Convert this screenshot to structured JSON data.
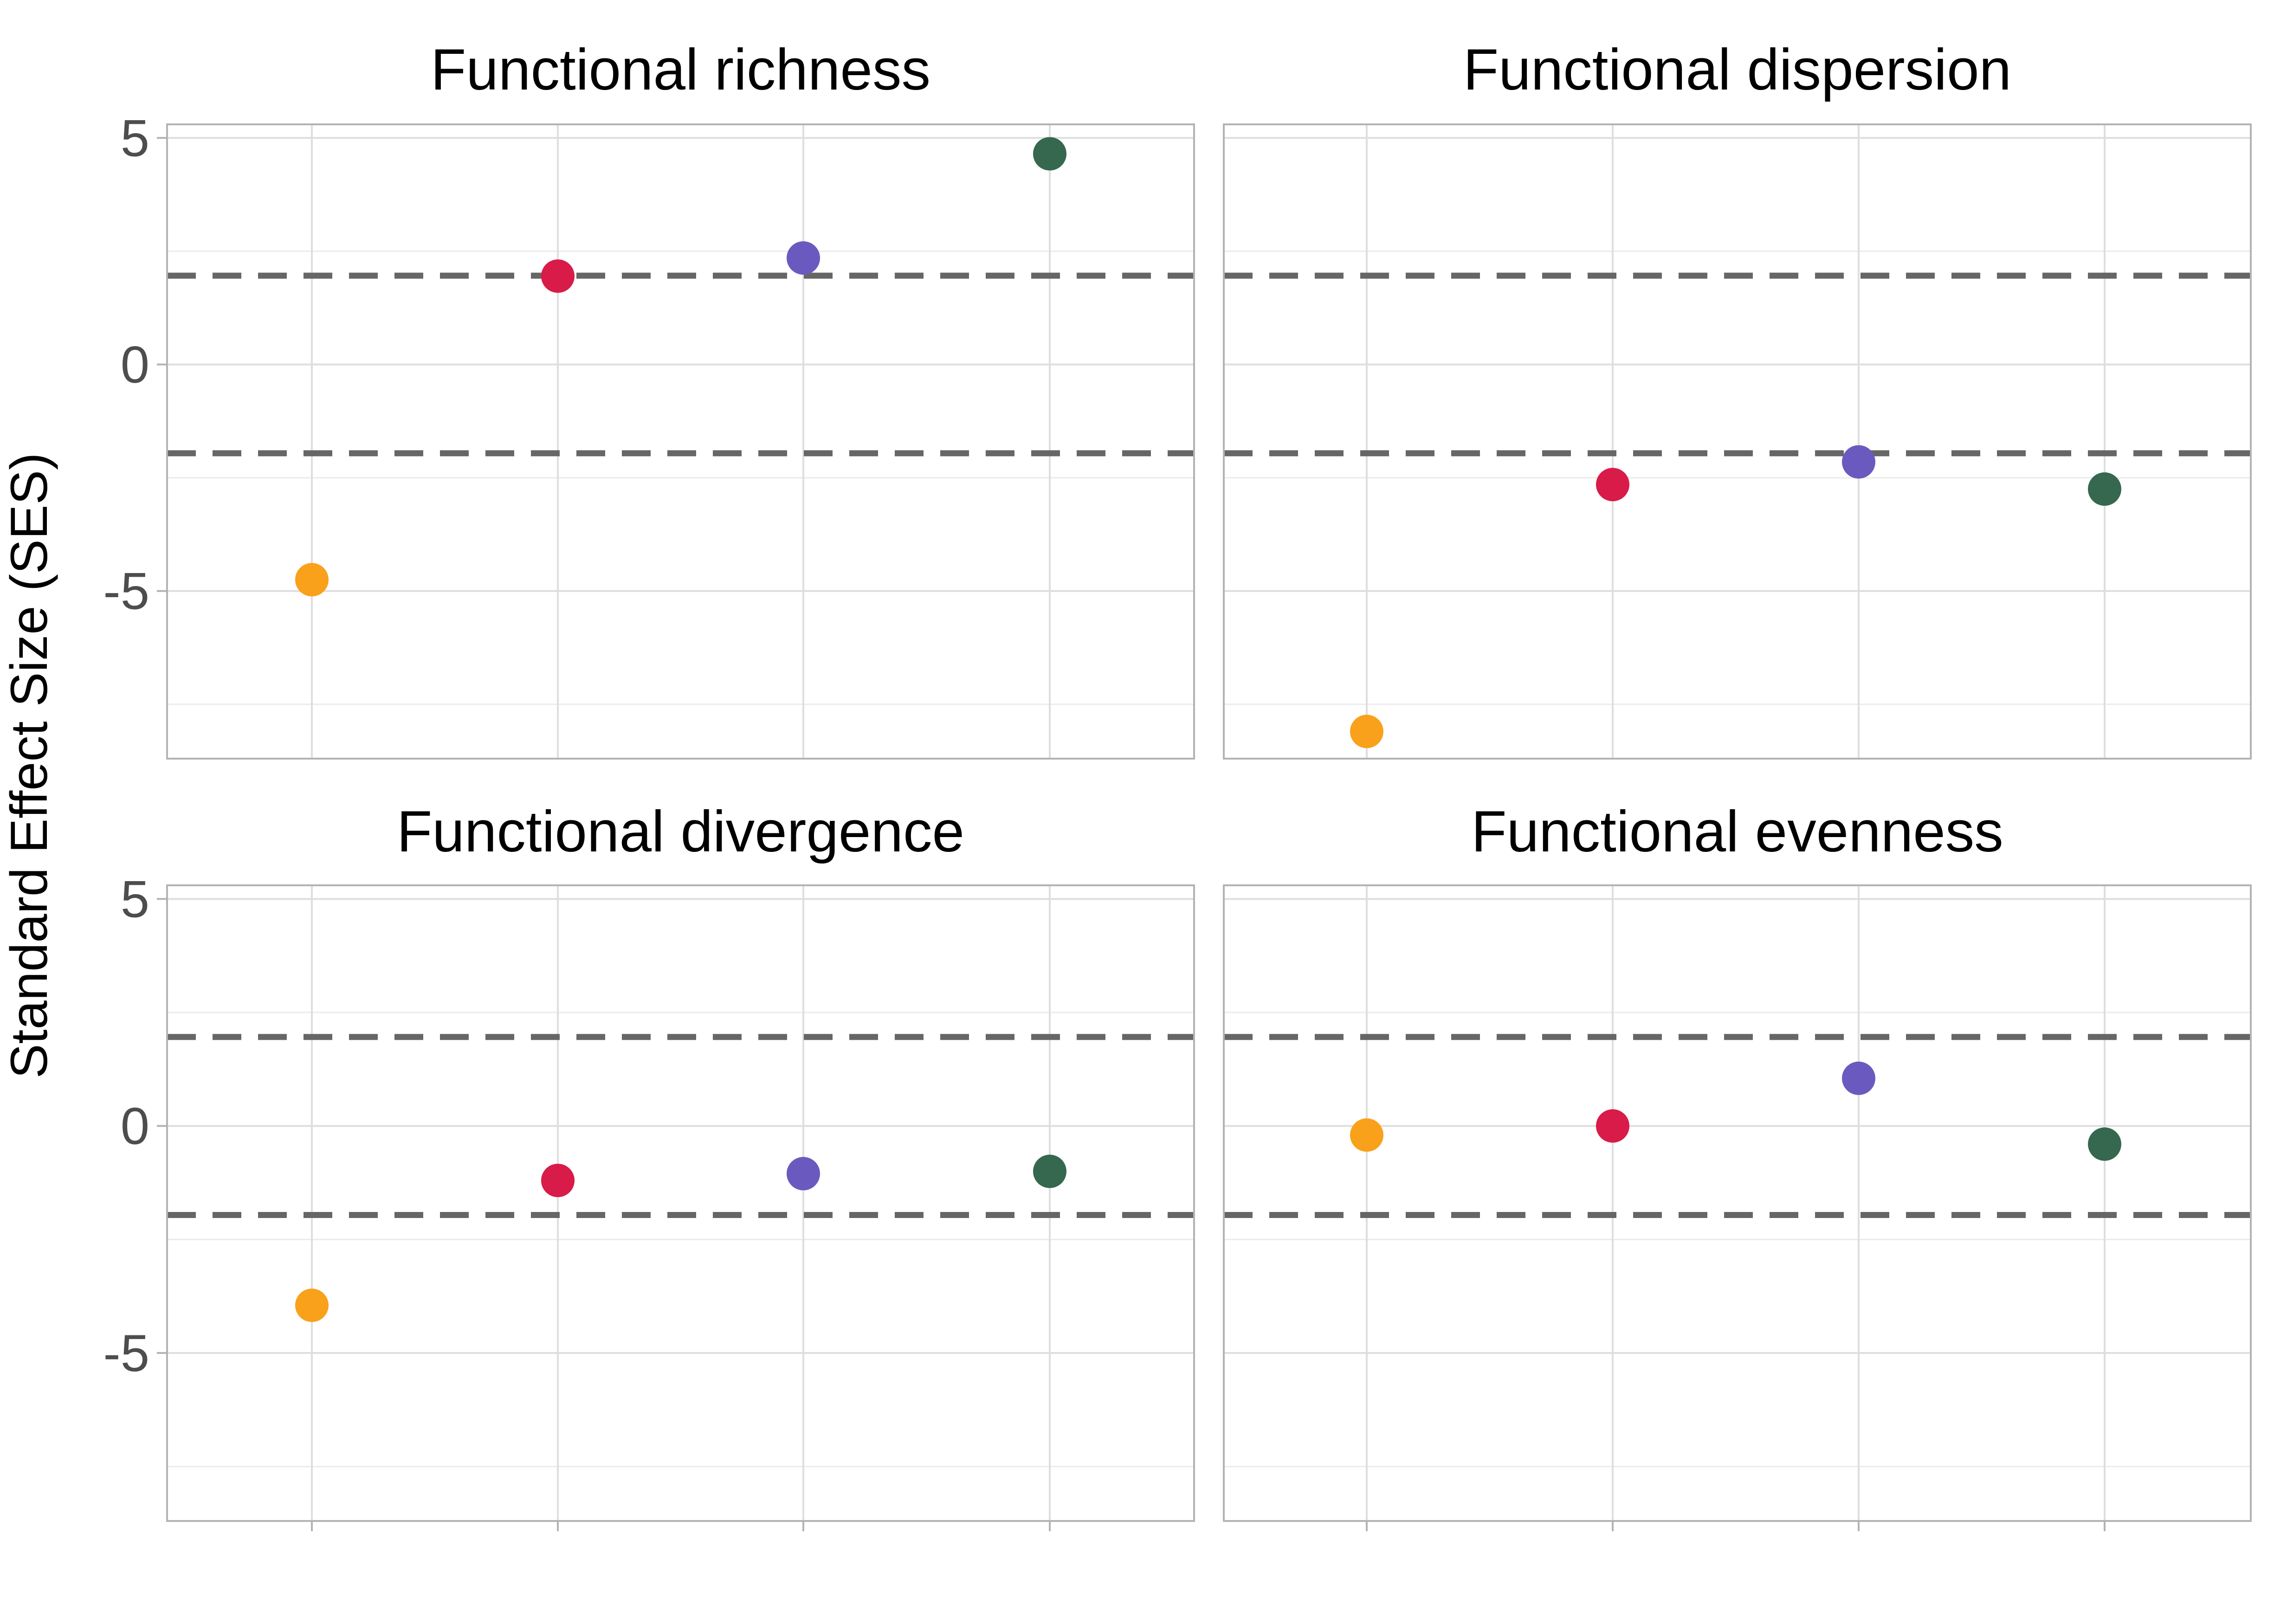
{
  "chart_data": {
    "type": "scatter",
    "ylabel": "Standard Effect Size (SES)",
    "xlabel": "",
    "ylim": [
      -8.7,
      5.3
    ],
    "yticks": [
      5,
      0,
      -5
    ],
    "ytick_labels": [
      "5",
      "0",
      "-5"
    ],
    "y_minor_gridlines": [
      2.5,
      -2.5,
      -7.5
    ],
    "reference_lines": [
      1.96,
      -1.96
    ],
    "x_positions": [
      1,
      2,
      3,
      4
    ],
    "colors": [
      "#F9A11B",
      "#D81B48",
      "#6A5ABF",
      "#35684F"
    ],
    "grid": true,
    "legend": "none",
    "panels": [
      {
        "title": "Functional richness",
        "values": [
          -4.75,
          1.95,
          2.35,
          4.65
        ]
      },
      {
        "title": "Functional dispersion",
        "values": [
          -8.1,
          -2.65,
          -2.15,
          -2.75
        ]
      },
      {
        "title": "Functional divergence",
        "values": [
          -3.95,
          -1.2,
          -1.05,
          -1.0
        ]
      },
      {
        "title": "Functional evenness",
        "values": [
          -0.2,
          0.0,
          1.05,
          -0.4
        ]
      }
    ]
  }
}
